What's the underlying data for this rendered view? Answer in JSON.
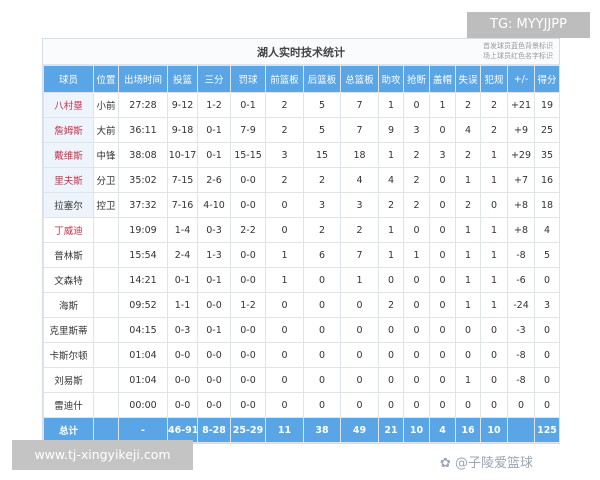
{
  "title": "湖人实时技术统计",
  "legend": [
    "首发球员蓝色背景标识",
    "场上球员红色名字标识"
  ],
  "colors": {
    "header_bg": "#5aa5e6",
    "oncourt_name": "#c8324a",
    "starter_bg": "#eef4fb"
  },
  "columns": [
    "球员",
    "位置",
    "出场时间",
    "投篮",
    "三分",
    "罚球",
    "前篮板",
    "后篮板",
    "总篮板",
    "助攻",
    "抢断",
    "盖帽",
    "失误",
    "犯规",
    "+/-",
    "得分"
  ],
  "rows": [
    {
      "starter": true,
      "oncourt": true,
      "cells": [
        "八村塁",
        "小前",
        "27:28",
        "9-12",
        "1-2",
        "0-1",
        "2",
        "5",
        "7",
        "1",
        "0",
        "1",
        "2",
        "2",
        "+21",
        "19"
      ]
    },
    {
      "starter": true,
      "oncourt": true,
      "cells": [
        "詹姆斯",
        "大前",
        "36:11",
        "9-18",
        "0-1",
        "7-9",
        "2",
        "5",
        "7",
        "9",
        "3",
        "0",
        "4",
        "2",
        "+9",
        "25"
      ]
    },
    {
      "starter": true,
      "oncourt": true,
      "cells": [
        "戴维斯",
        "中锋",
        "38:08",
        "10-17",
        "0-1",
        "15-15",
        "3",
        "15",
        "18",
        "1",
        "2",
        "3",
        "2",
        "1",
        "+29",
        "35"
      ]
    },
    {
      "starter": true,
      "oncourt": true,
      "cells": [
        "里夫斯",
        "分卫",
        "35:02",
        "7-15",
        "2-6",
        "0-0",
        "2",
        "2",
        "4",
        "4",
        "2",
        "0",
        "1",
        "1",
        "+7",
        "16"
      ]
    },
    {
      "starter": true,
      "oncourt": false,
      "cells": [
        "拉塞尔",
        "控卫",
        "37:32",
        "7-16",
        "4-10",
        "0-0",
        "0",
        "3",
        "3",
        "2",
        "2",
        "0",
        "2",
        "0",
        "+8",
        "18"
      ]
    },
    {
      "starter": false,
      "oncourt": true,
      "cells": [
        "丁威迪",
        "",
        "19:09",
        "1-4",
        "0-3",
        "2-2",
        "0",
        "2",
        "2",
        "1",
        "0",
        "0",
        "1",
        "1",
        "+8",
        "4"
      ]
    },
    {
      "starter": false,
      "oncourt": false,
      "cells": [
        "普林斯",
        "",
        "15:54",
        "2-4",
        "1-3",
        "0-0",
        "1",
        "6",
        "7",
        "1",
        "1",
        "0",
        "1",
        "1",
        "-8",
        "5"
      ]
    },
    {
      "starter": false,
      "oncourt": false,
      "cells": [
        "文森特",
        "",
        "14:21",
        "0-1",
        "0-1",
        "0-0",
        "1",
        "0",
        "1",
        "0",
        "0",
        "0",
        "1",
        "1",
        "-6",
        "0"
      ]
    },
    {
      "starter": false,
      "oncourt": false,
      "cells": [
        "海斯",
        "",
        "09:52",
        "1-1",
        "0-0",
        "1-2",
        "0",
        "0",
        "0",
        "2",
        "0",
        "0",
        "1",
        "1",
        "-24",
        "3"
      ]
    },
    {
      "starter": false,
      "oncourt": false,
      "cells": [
        "克里斯蒂",
        "",
        "04:15",
        "0-3",
        "0-1",
        "0-0",
        "0",
        "0",
        "0",
        "0",
        "0",
        "0",
        "0",
        "0",
        "-3",
        "0"
      ]
    },
    {
      "starter": false,
      "oncourt": false,
      "cells": [
        "卡斯尔顿",
        "",
        "01:04",
        "0-0",
        "0-0",
        "0-0",
        "0",
        "0",
        "0",
        "0",
        "0",
        "0",
        "0",
        "0",
        "-8",
        "0"
      ]
    },
    {
      "starter": false,
      "oncourt": false,
      "cells": [
        "刘易斯",
        "",
        "01:04",
        "0-0",
        "0-0",
        "0-0",
        "0",
        "0",
        "0",
        "0",
        "0",
        "0",
        "1",
        "0",
        "-8",
        "0"
      ]
    },
    {
      "starter": false,
      "oncourt": false,
      "cells": [
        "雷迪什",
        "",
        "00:00",
        "0-0",
        "0-0",
        "0-0",
        "0",
        "0",
        "0",
        "0",
        "0",
        "0",
        "0",
        "0",
        "0",
        "0"
      ]
    }
  ],
  "total": [
    "总计",
    "",
    "-",
    "46-91",
    "8-28",
    "25-29",
    "11",
    "38",
    "49",
    "21",
    "10",
    "4",
    "16",
    "10",
    "",
    "125"
  ],
  "overlays": {
    "tg_badge": "TG: MYYJJPP",
    "site_url": "www.tj-xingyikeji.com",
    "watermark": "@子陵爱篮球"
  }
}
